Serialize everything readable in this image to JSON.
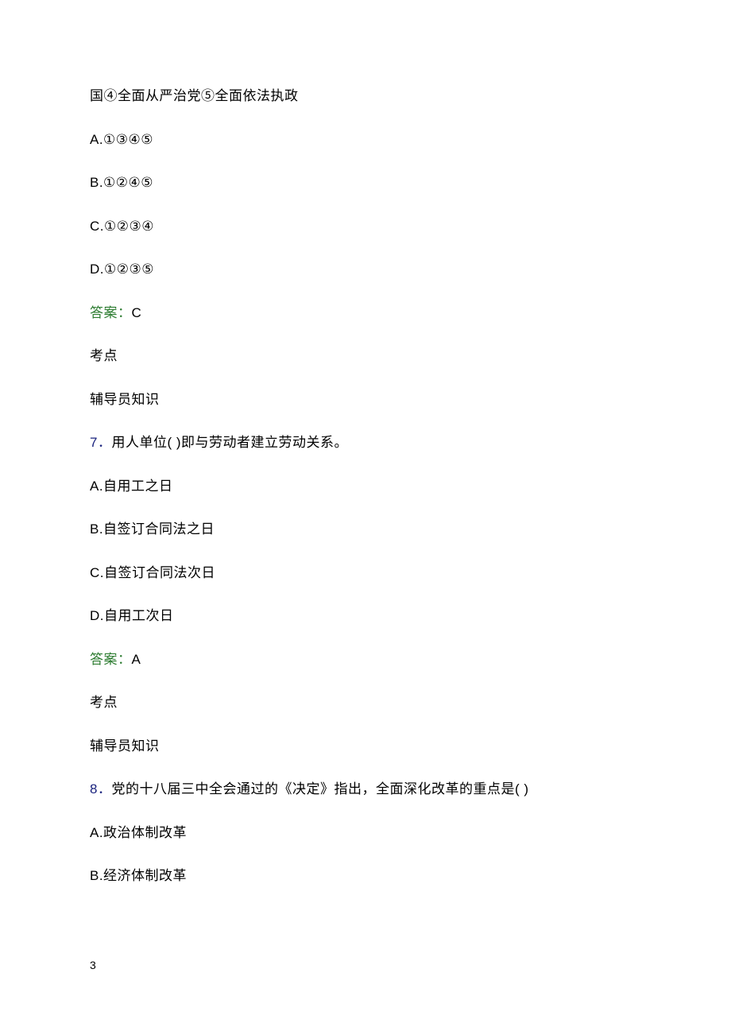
{
  "content": {
    "fragment_line": "国④全面从严治党⑤全面依法执政",
    "q6": {
      "options": {
        "a": "A.①③④⑤",
        "b": "B.①②④⑤",
        "c": "C.①②③④",
        "d": "D.①②③⑤"
      },
      "answer_label": "答案：",
      "answer_value": "C",
      "kaodian": "考点",
      "knowledge": "辅导员知识"
    },
    "q7": {
      "number": "7．",
      "stem": "用人单位( )即与劳动者建立劳动关系。",
      "options": {
        "a": "A.自用工之日",
        "b": "B.自签订合同法之日",
        "c": "C.自签订合同法次日",
        "d": "D.自用工次日"
      },
      "answer_label": "答案：",
      "answer_value": "A",
      "kaodian": "考点",
      "knowledge": "辅导员知识"
    },
    "q8": {
      "number": "8．",
      "stem": "党的十八届三中全会通过的《决定》指出，全面深化改革的重点是( )",
      "options": {
        "a": "A.政治体制改革",
        "b": "B.经济体制改革"
      }
    }
  },
  "page_number": "3",
  "colors": {
    "text": "#000000",
    "answer_label": "#2e7d32",
    "question_number": "#1a237e",
    "background": "#ffffff"
  },
  "typography": {
    "body_fontsize": 17,
    "page_number_fontsize": 14,
    "line_spacing": 29
  }
}
